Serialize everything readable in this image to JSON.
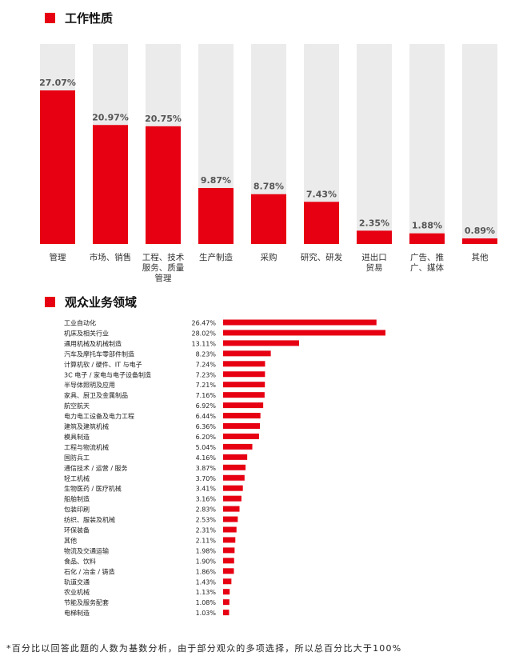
{
  "colors": {
    "accent": "#e60012",
    "track": "#ebebeb"
  },
  "section1": {
    "title": "工作性质"
  },
  "section2": {
    "title": "观众业务领域"
  },
  "chart_data": [
    {
      "type": "bar",
      "title": "工作性质",
      "ylim": [
        0,
        100
      ],
      "categories": [
        [
          "管理"
        ],
        [
          "市场、销售"
        ],
        [
          "工程、技术",
          "服务、质量",
          "管理"
        ],
        [
          "生产制造"
        ],
        [
          "采购"
        ],
        [
          "研究、研发"
        ],
        [
          "进出口",
          "贸易"
        ],
        [
          "广告、推",
          "广、媒体"
        ],
        [
          "其他"
        ]
      ],
      "values": [
        27.07,
        20.97,
        20.75,
        9.87,
        8.78,
        7.43,
        2.35,
        1.88,
        0.89
      ],
      "value_labels": [
        "27.07%",
        "20.97%",
        "20.75%",
        "9.87%",
        "8.78%",
        "7.43%",
        "2.35%",
        "1.88%",
        "0.89%"
      ],
      "grid": false
    },
    {
      "type": "bar",
      "orientation": "horizontal",
      "title": "观众业务领域",
      "xlim": [
        0,
        30
      ],
      "categories": [
        "工业自动化",
        "机床及相关行业",
        "通用机械及机械制造",
        "汽车及摩托车零部件制造",
        "计算机软 / 硬件、IT 与电子",
        "3C 电子 / 家电与电子设备制造",
        "半导体照明及应用",
        "家具、厨卫及金属制品",
        "航空航天",
        "电力电工设备及电力工程",
        "建筑及建筑机械",
        "模具制造",
        "工程与物流机械",
        "国防兵工",
        "通信技术 / 运营 / 服务",
        "轻工机械",
        "生物医药 / 医疗机械",
        "船舶制造",
        "包装印刷",
        "纺织、服装及机械",
        "环保装备",
        "其他",
        "物流及交通运输",
        "食品、饮料",
        "石化 / 冶金 / 铸造",
        "轨道交通",
        "农业机械",
        "节能及服务配套",
        "电梯制造"
      ],
      "values": [
        26.47,
        28.02,
        13.11,
        8.23,
        7.24,
        7.23,
        7.21,
        7.16,
        6.92,
        6.44,
        6.36,
        6.2,
        5.04,
        4.16,
        3.87,
        3.7,
        3.41,
        3.16,
        2.83,
        2.53,
        2.31,
        2.11,
        1.98,
        1.9,
        1.86,
        1.43,
        1.13,
        1.08,
        1.03
      ],
      "value_labels": [
        "26.47%",
        "28.02%",
        "13.11%",
        "8.23%",
        "7.24%",
        "7.23%",
        "7.21%",
        "7.16%",
        "6.92%",
        "6.44%",
        "6.36%",
        "6.20%",
        "5.04%",
        "4.16%",
        "3.87%",
        "3.70%",
        "3.41%",
        "3.16%",
        "2.83%",
        "2.53%",
        "2.31%",
        "2.11%",
        "1.98%",
        "1.90%",
        "1.86%",
        "1.43%",
        "1.13%",
        "1.08%",
        "1.03%"
      ],
      "grid": false
    }
  ],
  "footnote": "*百分比以回答此题的人数为基数分析，由于部分观众的多项选择，所以总百分比大于100%"
}
